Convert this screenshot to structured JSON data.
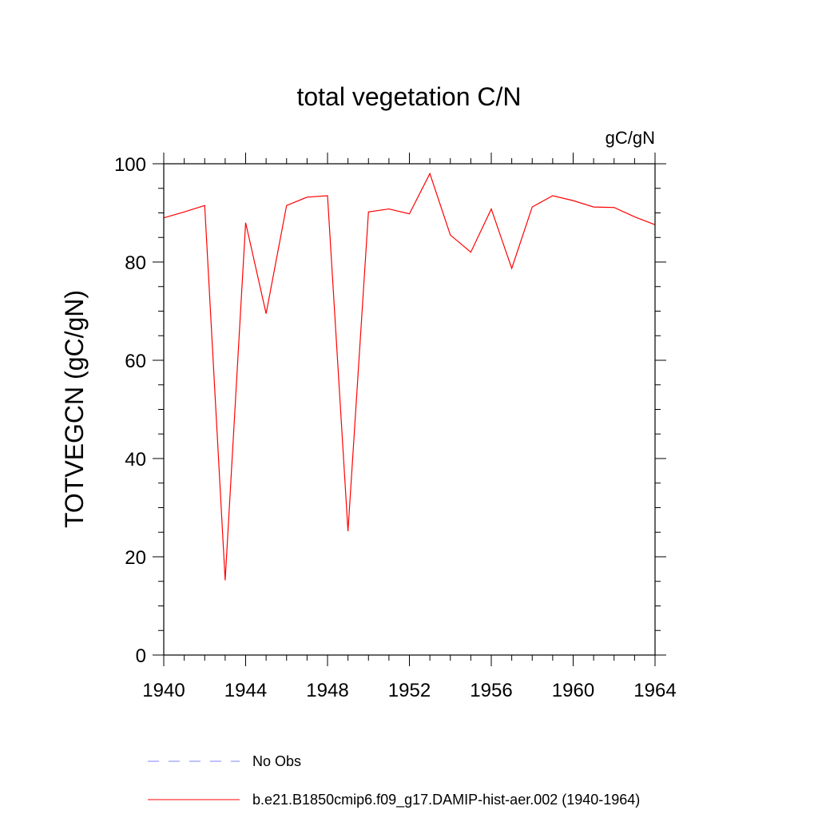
{
  "chart_data": {
    "type": "line",
    "title": "total vegetation C/N",
    "units_label": "gC/gN",
    "ylabel": "TOTVEGCN  (gC/gN)",
    "xlabel": "",
    "xlim": [
      1940,
      1964
    ],
    "ylim": [
      0,
      100
    ],
    "x_ticks": [
      1940,
      1944,
      1948,
      1952,
      1956,
      1960,
      1964
    ],
    "y_ticks": [
      0,
      20,
      40,
      60,
      80,
      100
    ],
    "grid": false,
    "series": [
      {
        "name": "b.e21.B1850cmip6.f09_g17.DAMIP-hist-aer.002 (1940-1964)",
        "color": "#ff0000",
        "x": [
          1940,
          1941,
          1942,
          1943,
          1944,
          1945,
          1946,
          1947,
          1948,
          1949,
          1950,
          1951,
          1952,
          1953,
          1954,
          1955,
          1956,
          1957,
          1958,
          1959,
          1960,
          1961,
          1962,
          1963,
          1964
        ],
        "y": [
          89.0,
          90.2,
          91.5,
          15.2,
          88.0,
          69.5,
          91.5,
          93.2,
          93.5,
          25.2,
          90.2,
          90.8,
          89.8,
          98.0,
          85.5,
          82.0,
          90.8,
          78.7,
          91.2,
          93.5,
          92.5,
          91.2,
          91.1,
          89.2,
          87.6
        ]
      }
    ],
    "legend": {
      "placement": "bottom",
      "entries": [
        {
          "label": "No Obs",
          "style": "dashed",
          "color": "#8080ff"
        },
        {
          "label": "b.e21.B1850cmip6.f09_g17.DAMIP-hist-aer.002 (1940-1964)",
          "style": "solid",
          "color": "#ff0000"
        }
      ]
    }
  }
}
